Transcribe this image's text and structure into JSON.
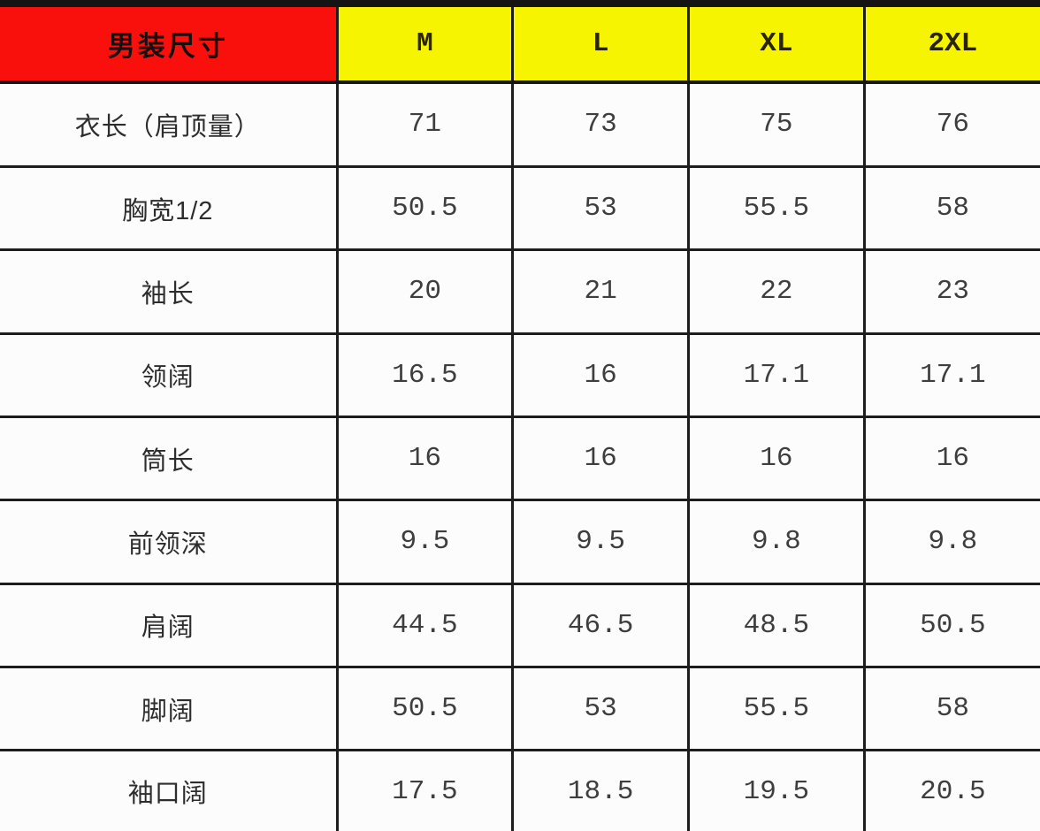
{
  "chart_data": {
    "type": "table",
    "title": "男装尺寸",
    "columns": [
      "M",
      "L",
      "XL",
      "2XL"
    ],
    "rows": [
      {
        "label": "衣长（肩顶量）",
        "values": [
          "71",
          "73",
          "75",
          "76"
        ]
      },
      {
        "label": "胸宽1/2",
        "values": [
          "50.5",
          "53",
          "55.5",
          "58"
        ]
      },
      {
        "label": "袖长",
        "values": [
          "20",
          "21",
          "22",
          "23"
        ]
      },
      {
        "label": "领阔",
        "values": [
          "16.5",
          "16",
          "17.1",
          "17.1"
        ]
      },
      {
        "label": "筒长",
        "values": [
          "16",
          "16",
          "16",
          "16"
        ]
      },
      {
        "label": "前领深",
        "values": [
          "9.5",
          "9.5",
          "9.8",
          "9.8"
        ]
      },
      {
        "label": "肩阔",
        "values": [
          "44.5",
          "46.5",
          "48.5",
          "50.5"
        ]
      },
      {
        "label": "脚阔",
        "values": [
          "50.5",
          "53",
          "55.5",
          "58"
        ]
      },
      {
        "label": "袖口阔",
        "values": [
          "17.5",
          "18.5",
          "19.5",
          "20.5"
        ]
      }
    ]
  },
  "colors": {
    "title_bg": "#f90f0b",
    "size_header_bg": "#f6f400",
    "border": "#1d1d1d",
    "cell_bg": "#fcfcfc",
    "value_text": "#3e3e3e"
  }
}
